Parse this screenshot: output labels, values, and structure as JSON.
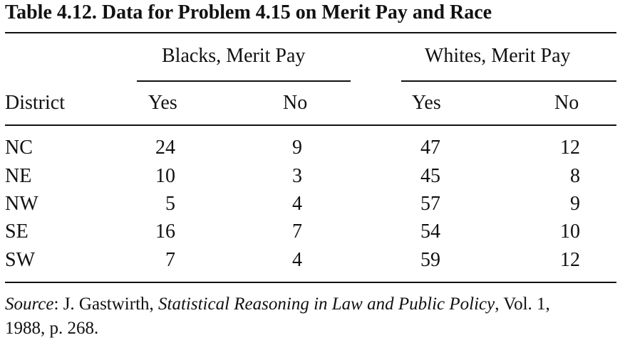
{
  "table": {
    "title": "Table  4.12.  Data for Problem 4.15 on Merit Pay and Race",
    "group_headers": {
      "blacks": "Blacks, Merit Pay",
      "whites": "Whites, Merit Pay"
    },
    "columns": {
      "district": "District",
      "blacks_yes": "Yes",
      "blacks_no": "No",
      "whites_yes": "Yes",
      "whites_no": "No"
    },
    "rows": [
      {
        "district": "NC",
        "blacks_yes": "24",
        "blacks_no": "9",
        "whites_yes": "47",
        "whites_no": "12"
      },
      {
        "district": "NE",
        "blacks_yes": "10",
        "blacks_no": "3",
        "whites_yes": "45",
        "whites_no": "8"
      },
      {
        "district": "NW",
        "blacks_yes": "5",
        "blacks_no": "4",
        "whites_yes": "57",
        "whites_no": "9"
      },
      {
        "district": "SE",
        "blacks_yes": "16",
        "blacks_no": "7",
        "whites_yes": "54",
        "whites_no": "10"
      },
      {
        "district": "SW",
        "blacks_yes": "7",
        "blacks_no": "4",
        "whites_yes": "59",
        "whites_no": "12"
      }
    ],
    "source": {
      "label": "Source",
      "sep": ":   J. Gastwirth, ",
      "book": "Statistical Reasoning in Law and Public Policy",
      "rest1": ", Vol. 1,",
      "rest2": "1988, p. 268."
    }
  }
}
